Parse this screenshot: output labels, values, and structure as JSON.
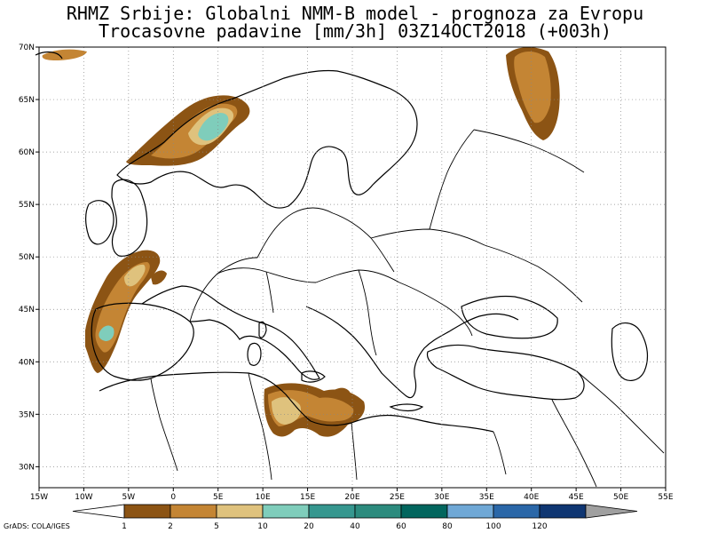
{
  "title": {
    "line1": "RHMZ Srbije: Globalni NMM-B model - prognoza za Evropu",
    "line2": "Trocasovne padavine [mm/3h] 03Z14OCT2018 (+003h)"
  },
  "axes": {
    "lon_labels": [
      "15W",
      "10W",
      "5W",
      "0",
      "5E",
      "10E",
      "15E",
      "20E",
      "25E",
      "30E",
      "35E",
      "40E",
      "45E",
      "50E",
      "55E"
    ],
    "lat_labels": [
      "70N",
      "65N",
      "60N",
      "55N",
      "50N",
      "45N",
      "40N",
      "35N",
      "30N"
    ],
    "lon_range": [
      -15,
      55
    ],
    "lat_range": [
      28,
      70
    ],
    "grid": "dotted"
  },
  "legend": {
    "bins": [
      {
        "label": "1",
        "color": "#8c5414"
      },
      {
        "label": "2",
        "color": "#c48534"
      },
      {
        "label": "5",
        "color": "#dfc27d"
      },
      {
        "label": "10",
        "color": "#7fcdbb"
      },
      {
        "label": "20",
        "color": "#36978f"
      },
      {
        "label": "40",
        "color": "#2c8b7e"
      },
      {
        "label": "60",
        "color": "#02665e"
      },
      {
        "label": "80",
        "color": "#6fa8d6"
      },
      {
        "label": "100",
        "color": "#2a67a8"
      },
      {
        "label": "120",
        "color": "#0f3672"
      }
    ],
    "under_color": "#ffffff",
    "over_color": "#a0a0a0"
  },
  "credit": "GrADS: COLA/IGES"
}
